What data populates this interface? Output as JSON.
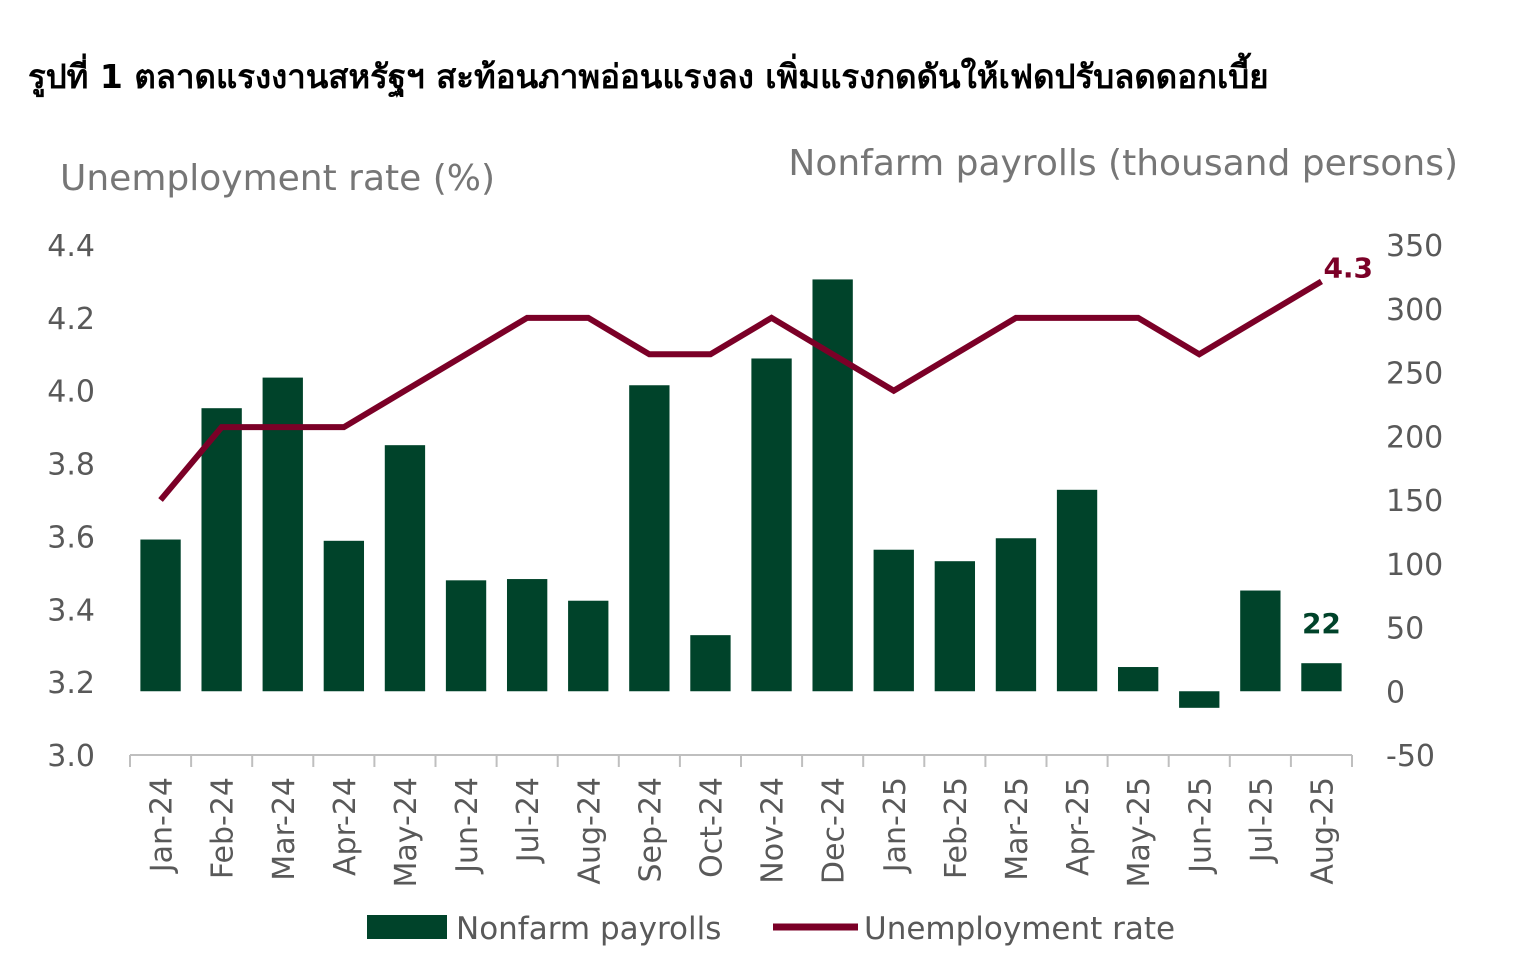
{
  "chart_data": {
    "type": "bar+line",
    "title": "รูปที่ 1 ตลาดแรงงานสหรัฐฯ สะท้อนภาพอ่อนแรงลง เพิ่มแรงกดดันให้เฟดปรับลดดอกเบี้ย",
    "y_left_label": "Unemployment rate (%)",
    "y_right_label": "Nonfarm payrolls (thousand persons)",
    "y_left_ticks": [
      "4.4",
      "4.2",
      "4.0",
      "3.8",
      "3.6",
      "3.4",
      "3.2",
      "3.0"
    ],
    "y_right_ticks": [
      "350",
      "300",
      "250",
      "200",
      "150",
      "100",
      "50",
      "0",
      "-50"
    ],
    "y_left_range": [
      3.0,
      4.4
    ],
    "y_right_range": [
      -50,
      350
    ],
    "categories": [
      "Jan-24",
      "Feb-24",
      "Mar-24",
      "Apr-24",
      "May-24",
      "Jun-24",
      "Jul-24",
      "Aug-24",
      "Sep-24",
      "Oct-24",
      "Nov-24",
      "Dec-24",
      "Jan-25",
      "Feb-25",
      "Mar-25",
      "Apr-25",
      "May-25",
      "Jun-25",
      "Jul-25",
      "Aug-25"
    ],
    "series": [
      {
        "name": "Nonfarm payrolls",
        "type": "bar",
        "axis": "right",
        "color": "#00432A",
        "values": [
          119,
          222,
          246,
          118,
          193,
          87,
          88,
          71,
          240,
          44,
          261,
          323,
          111,
          102,
          120,
          158,
          19,
          -13,
          79,
          22
        ]
      },
      {
        "name": "Unemployment rate",
        "type": "line",
        "axis": "left",
        "color": "#7B0027",
        "values": [
          3.7,
          3.9,
          3.9,
          3.9,
          4.0,
          4.1,
          4.2,
          4.2,
          4.1,
          4.1,
          4.2,
          4.1,
          4.0,
          4.1,
          4.2,
          4.2,
          4.2,
          4.1,
          4.2,
          4.3
        ]
      }
    ],
    "data_labels": [
      {
        "series": "Unemployment rate",
        "category": "Aug-25",
        "text": "4.3"
      },
      {
        "series": "Nonfarm payrolls",
        "category": "Aug-25",
        "text": "22"
      }
    ],
    "legend_position": "bottom",
    "grid": false
  }
}
